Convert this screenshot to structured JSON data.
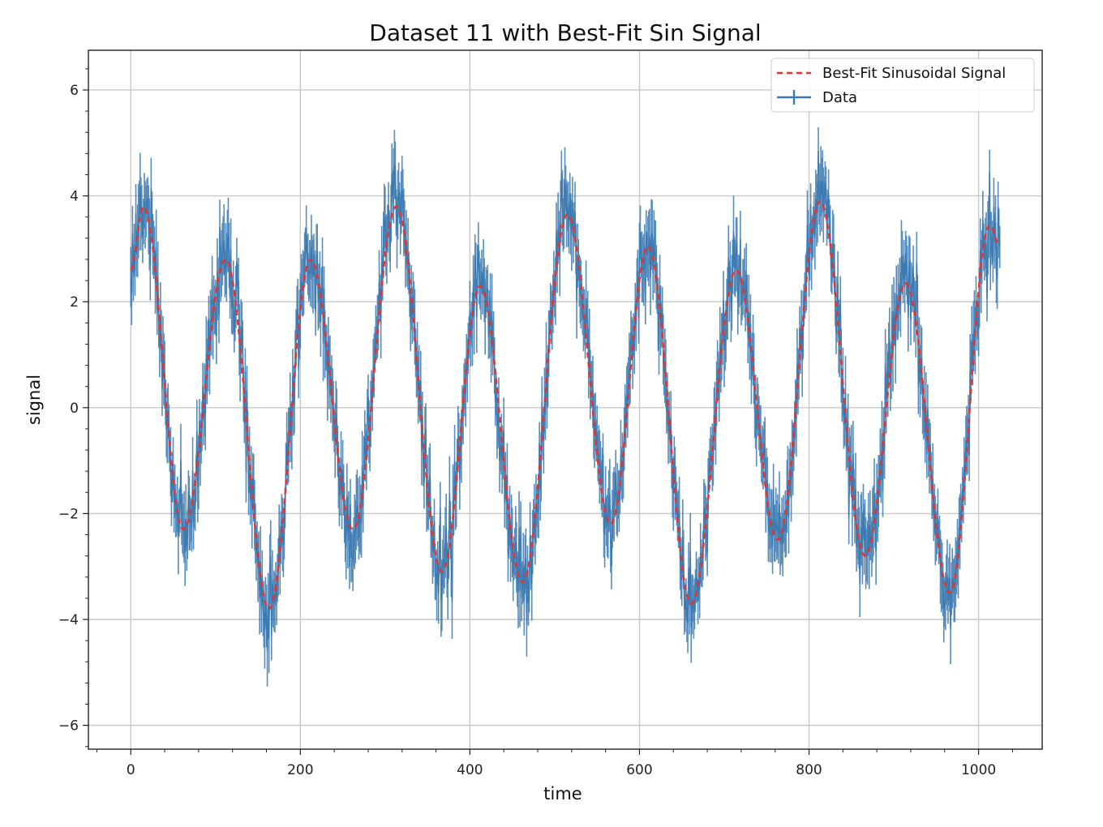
{
  "chart_data": {
    "type": "line",
    "title": "Dataset 11 with Best-Fit Sin Signal",
    "xlabel": "time",
    "ylabel": "signal",
    "xlim": [
      -50,
      1075
    ],
    "ylim": [
      -6.45,
      6.75
    ],
    "xticks": [
      0,
      200,
      400,
      600,
      800,
      1000
    ],
    "xtick_labels": [
      "0",
      "200",
      "400",
      "600",
      "800",
      "1000"
    ],
    "yticks": [
      -6,
      -4,
      -2,
      0,
      2,
      4,
      6
    ],
    "ytick_labels": [
      "−6",
      "−4",
      "−2",
      "0",
      "2",
      "4",
      "6"
    ],
    "grid": true,
    "legend_position": "top-right",
    "series": [
      {
        "name": "Best-Fit Sinusoidal Signal",
        "style": "dashed",
        "color": "#e8322b",
        "x": [
          0,
          15,
          62,
          112,
          163,
          212,
          262,
          313,
          367,
          412,
          462,
          515,
          566,
          610,
          661,
          714,
          763,
          813,
          866,
          914,
          966,
          1013,
          1025
        ],
        "y": [
          2.6,
          3.8,
          -2.3,
          2.8,
          -3.8,
          2.8,
          -2.3,
          3.8,
          -3.1,
          2.3,
          -3.3,
          3.65,
          -2.2,
          3.05,
          -3.7,
          2.6,
          -2.5,
          3.9,
          -2.8,
          2.35,
          -3.5,
          3.45,
          3.05
        ]
      },
      {
        "name": "Data",
        "style": "errorbar",
        "color": "#3a78b0",
        "x_range": [
          0,
          1025
        ],
        "samples": 1026,
        "noise_sd": 0.4,
        "error_halfwidth": 0.55
      }
    ]
  }
}
